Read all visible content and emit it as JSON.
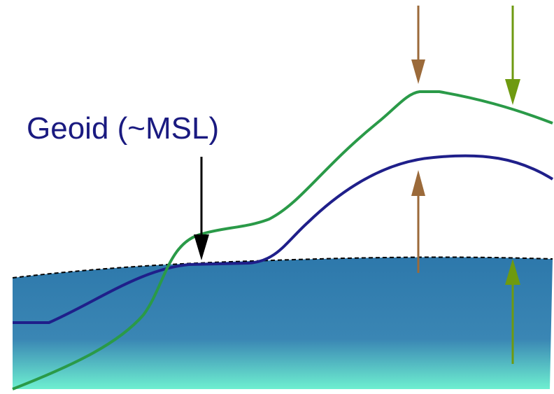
{
  "labels": {
    "geoid": "Geoid (~MSL)"
  },
  "colors": {
    "label_text": "#1a1a80",
    "geoid_line": "#1f1f8a",
    "topography_line": "#2a9a48",
    "geoid_dashed": "#000000",
    "ocean_top": "#2d78ab",
    "ocean_bottom": "#6eefd0",
    "brown_arrow": "#9b6a3a",
    "olive_arrow": "#6e9a10",
    "pointer_arrow": "#000000"
  },
  "icons": {
    "pointer": "arrow-down-icon",
    "brown_pair": "opposing-vertical-arrows-icon",
    "olive_pair": "opposing-vertical-arrows-icon"
  }
}
